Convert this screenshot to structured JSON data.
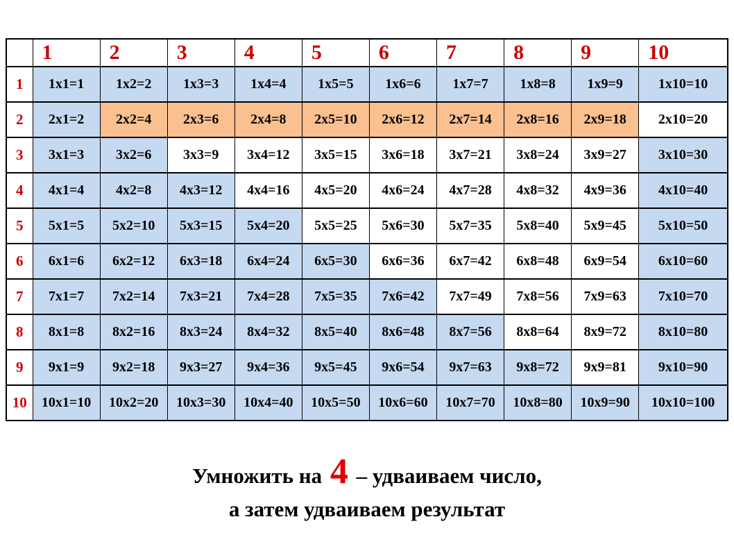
{
  "page": {
    "background": "#ffffff"
  },
  "table": {
    "border_color": "#000000",
    "header_text_color": "#cc0000",
    "cell_text_color": "#000000",
    "colors": {
      "blue": "#c5d9f1",
      "orange": "#fac090",
      "white": "#ffffff"
    },
    "column_headers": [
      "1",
      "2",
      "3",
      "4",
      "5",
      "6",
      "7",
      "8",
      "9",
      "10"
    ],
    "rows": [
      {
        "header": "1",
        "cells": [
          {
            "t": "1x1=1",
            "bg": "blue"
          },
          {
            "t": "1x2=2",
            "bg": "blue"
          },
          {
            "t": "1x3=3",
            "bg": "blue"
          },
          {
            "t": "1x4=4",
            "bg": "blue"
          },
          {
            "t": "1x5=5",
            "bg": "blue"
          },
          {
            "t": "1x6=6",
            "bg": "blue"
          },
          {
            "t": "1x7=7",
            "bg": "blue"
          },
          {
            "t": "1x8=8",
            "bg": "blue"
          },
          {
            "t": "1x9=9",
            "bg": "blue"
          },
          {
            "t": "1x10=10",
            "bg": "blue"
          }
        ]
      },
      {
        "header": "2",
        "cells": [
          {
            "t": "2x1=2",
            "bg": "blue"
          },
          {
            "t": "2x2=4",
            "bg": "orange"
          },
          {
            "t": "2x3=6",
            "bg": "orange"
          },
          {
            "t": "2x4=8",
            "bg": "orange"
          },
          {
            "t": "2x5=10",
            "bg": "orange"
          },
          {
            "t": "2x6=12",
            "bg": "orange"
          },
          {
            "t": "2x7=14",
            "bg": "orange"
          },
          {
            "t": "2x8=16",
            "bg": "orange"
          },
          {
            "t": "2x9=18",
            "bg": "orange"
          },
          {
            "t": "2x10=20",
            "bg": "white"
          }
        ]
      },
      {
        "header": "3",
        "cells": [
          {
            "t": "3x1=3",
            "bg": "blue"
          },
          {
            "t": "3x2=6",
            "bg": "blue"
          },
          {
            "t": "3x3=9",
            "bg": "white"
          },
          {
            "t": "3x4=12",
            "bg": "white"
          },
          {
            "t": "3x5=15",
            "bg": "white"
          },
          {
            "t": "3x6=18",
            "bg": "white"
          },
          {
            "t": "3x7=21",
            "bg": "white"
          },
          {
            "t": "3x8=24",
            "bg": "white"
          },
          {
            "t": "3x9=27",
            "bg": "white"
          },
          {
            "t": "3x10=30",
            "bg": "blue"
          }
        ]
      },
      {
        "header": "4",
        "cells": [
          {
            "t": "4x1=4",
            "bg": "blue"
          },
          {
            "t": "4x2=8",
            "bg": "blue"
          },
          {
            "t": "4x3=12",
            "bg": "blue"
          },
          {
            "t": "4x4=16",
            "bg": "white"
          },
          {
            "t": "4x5=20",
            "bg": "white"
          },
          {
            "t": "4x6=24",
            "bg": "white"
          },
          {
            "t": "4x7=28",
            "bg": "white"
          },
          {
            "t": "4x8=32",
            "bg": "white"
          },
          {
            "t": "4x9=36",
            "bg": "white"
          },
          {
            "t": "4x10=40",
            "bg": "blue"
          }
        ]
      },
      {
        "header": "5",
        "cells": [
          {
            "t": "5x1=5",
            "bg": "blue"
          },
          {
            "t": "5x2=10",
            "bg": "blue"
          },
          {
            "t": "5x3=15",
            "bg": "blue"
          },
          {
            "t": "5x4=20",
            "bg": "blue"
          },
          {
            "t": "5x5=25",
            "bg": "white"
          },
          {
            "t": "5x6=30",
            "bg": "white"
          },
          {
            "t": "5x7=35",
            "bg": "white"
          },
          {
            "t": "5x8=40",
            "bg": "white"
          },
          {
            "t": "5x9=45",
            "bg": "white"
          },
          {
            "t": "5x10=50",
            "bg": "blue"
          }
        ]
      },
      {
        "header": "6",
        "cells": [
          {
            "t": "6x1=6",
            "bg": "blue"
          },
          {
            "t": "6x2=12",
            "bg": "blue"
          },
          {
            "t": "6x3=18",
            "bg": "blue"
          },
          {
            "t": "6x4=24",
            "bg": "blue"
          },
          {
            "t": "6x5=30",
            "bg": "blue"
          },
          {
            "t": "6x6=36",
            "bg": "white"
          },
          {
            "t": "6x7=42",
            "bg": "white"
          },
          {
            "t": "6x8=48",
            "bg": "white"
          },
          {
            "t": "6x9=54",
            "bg": "white"
          },
          {
            "t": "6x10=60",
            "bg": "blue"
          }
        ]
      },
      {
        "header": "7",
        "cells": [
          {
            "t": "7x1=7",
            "bg": "blue"
          },
          {
            "t": "7x2=14",
            "bg": "blue"
          },
          {
            "t": "7x3=21",
            "bg": "blue"
          },
          {
            "t": "7x4=28",
            "bg": "blue"
          },
          {
            "t": "7x5=35",
            "bg": "blue"
          },
          {
            "t": "7x6=42",
            "bg": "blue"
          },
          {
            "t": "7x7=49",
            "bg": "white"
          },
          {
            "t": "7x8=56",
            "bg": "white"
          },
          {
            "t": "7x9=63",
            "bg": "white"
          },
          {
            "t": "7x10=70",
            "bg": "blue"
          }
        ]
      },
      {
        "header": "8",
        "cells": [
          {
            "t": "8x1=8",
            "bg": "blue"
          },
          {
            "t": "8x2=16",
            "bg": "blue"
          },
          {
            "t": "8x3=24",
            "bg": "blue"
          },
          {
            "t": "8x4=32",
            "bg": "blue"
          },
          {
            "t": "8x5=40",
            "bg": "blue"
          },
          {
            "t": "8x6=48",
            "bg": "blue"
          },
          {
            "t": "8x7=56",
            "bg": "blue"
          },
          {
            "t": "8x8=64",
            "bg": "white"
          },
          {
            "t": "8x9=72",
            "bg": "white"
          },
          {
            "t": "8x10=80",
            "bg": "blue"
          }
        ]
      },
      {
        "header": "9",
        "cells": [
          {
            "t": "9x1=9",
            "bg": "blue"
          },
          {
            "t": "9x2=18",
            "bg": "blue"
          },
          {
            "t": "9x3=27",
            "bg": "blue"
          },
          {
            "t": "9x4=36",
            "bg": "blue"
          },
          {
            "t": "9x5=45",
            "bg": "blue"
          },
          {
            "t": "9x6=54",
            "bg": "blue"
          },
          {
            "t": "9x7=63",
            "bg": "blue"
          },
          {
            "t": "9x8=72",
            "bg": "blue"
          },
          {
            "t": "9x9=81",
            "bg": "white"
          },
          {
            "t": "9x10=90",
            "bg": "blue"
          }
        ]
      },
      {
        "header": "10",
        "cells": [
          {
            "t": "10x1=10",
            "bg": "blue"
          },
          {
            "t": "10x2=20",
            "bg": "blue"
          },
          {
            "t": "10x3=30",
            "bg": "blue"
          },
          {
            "t": "10x4=40",
            "bg": "blue"
          },
          {
            "t": "10x5=50",
            "bg": "blue"
          },
          {
            "t": "10x6=60",
            "bg": "blue"
          },
          {
            "t": "10x7=70",
            "bg": "blue"
          },
          {
            "t": "10x8=80",
            "bg": "blue"
          },
          {
            "t": "10x9=90",
            "bg": "blue"
          },
          {
            "t": "10x10=100",
            "bg": "blue"
          }
        ]
      }
    ]
  },
  "caption": {
    "prefix": "Умножить на ",
    "number": "4",
    "suffix": " – удваиваем число,",
    "line2": "а затем удваиваем результат",
    "number_color": "#e00000"
  }
}
